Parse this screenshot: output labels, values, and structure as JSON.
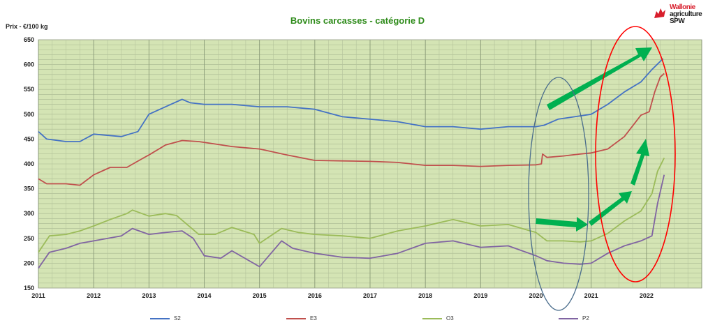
{
  "logo": {
    "line1": "Wallonie",
    "line2": "agriculture",
    "line3": "SPW"
  },
  "chart_data": {
    "type": "line",
    "title": "Bovins carcasses - catégorie D",
    "ylabel": "Prix - €/100 kg",
    "xlabel": "",
    "ylim": [
      150,
      650
    ],
    "xlim": [
      2011,
      2023
    ],
    "x_ticks": [
      "2011",
      "2012",
      "2013",
      "2014",
      "2015",
      "2016",
      "2017",
      "2018",
      "2019",
      "2020",
      "2021",
      "2022"
    ],
    "y_ticks": [
      "150",
      "200",
      "250",
      "300",
      "350",
      "400",
      "450",
      "500",
      "550",
      "600",
      "650"
    ],
    "grid": true,
    "legend_position": "bottom",
    "background": "#d4e4b4",
    "series": [
      {
        "name": "S2",
        "color": "#4472c4",
        "x": [
          2011.0,
          2011.15,
          2011.5,
          2011.75,
          2012.0,
          2012.5,
          2012.8,
          2013.0,
          2013.3,
          2013.6,
          2013.75,
          2014.0,
          2014.5,
          2015.0,
          2015.5,
          2016.0,
          2016.5,
          2017.0,
          2017.5,
          2018.0,
          2018.5,
          2019.0,
          2019.5,
          2020.0,
          2020.15,
          2020.4,
          2020.7,
          2021.0,
          2021.3,
          2021.6,
          2021.9,
          2022.1,
          2022.3
        ],
        "y": [
          465,
          450,
          445,
          445,
          460,
          455,
          465,
          500,
          515,
          530,
          523,
          520,
          520,
          515,
          515,
          510,
          495,
          490,
          485,
          475,
          475,
          470,
          475,
          475,
          478,
          490,
          495,
          500,
          520,
          545,
          565,
          590,
          612
        ]
      },
      {
        "name": "E3",
        "color": "#c0504d",
        "x": [
          2011.0,
          2011.15,
          2011.5,
          2011.75,
          2012.0,
          2012.3,
          2012.6,
          2012.9,
          2013.0,
          2013.3,
          2013.6,
          2013.9,
          2014.2,
          2014.5,
          2015.0,
          2015.5,
          2016.0,
          2016.5,
          2017.0,
          2017.5,
          2018.0,
          2018.5,
          2019.0,
          2019.5,
          2020.0,
          2020.1,
          2020.12,
          2020.2,
          2020.5,
          2020.8,
          2021.0,
          2021.3,
          2021.6,
          2021.9,
          2022.05,
          2022.15,
          2022.25,
          2022.32
        ],
        "y": [
          370,
          360,
          360,
          357,
          378,
          393,
          393,
          412,
          418,
          438,
          447,
          445,
          440,
          435,
          430,
          418,
          407,
          406,
          405,
          403,
          397,
          397,
          395,
          397,
          398,
          400,
          420,
          413,
          416,
          420,
          422,
          430,
          455,
          498,
          505,
          545,
          575,
          582
        ]
      },
      {
        "name": "O3",
        "color": "#9bbb59",
        "x": [
          2011.0,
          2011.2,
          2011.5,
          2011.75,
          2012.0,
          2012.3,
          2012.6,
          2012.7,
          2013.0,
          2013.3,
          2013.5,
          2013.9,
          2014.2,
          2014.5,
          2014.9,
          2015.0,
          2015.4,
          2015.7,
          2016.0,
          2016.5,
          2017.0,
          2017.5,
          2018.0,
          2018.5,
          2019.0,
          2019.5,
          2020.0,
          2020.2,
          2020.5,
          2020.8,
          2021.0,
          2021.3,
          2021.6,
          2021.9,
          2022.1,
          2022.2,
          2022.32
        ],
        "y": [
          222,
          255,
          258,
          265,
          275,
          288,
          300,
          307,
          295,
          300,
          296,
          258,
          258,
          272,
          258,
          240,
          270,
          262,
          258,
          255,
          250,
          265,
          275,
          288,
          275,
          278,
          262,
          245,
          245,
          243,
          245,
          260,
          285,
          305,
          340,
          385,
          412
        ]
      },
      {
        "name": "P2",
        "color": "#8064a2",
        "x": [
          2011.0,
          2011.2,
          2011.5,
          2011.75,
          2012.0,
          2012.5,
          2012.7,
          2013.0,
          2013.3,
          2013.6,
          2013.8,
          2014.0,
          2014.3,
          2014.5,
          2015.0,
          2015.4,
          2015.6,
          2016.0,
          2016.5,
          2017.0,
          2017.5,
          2018.0,
          2018.5,
          2019.0,
          2019.5,
          2020.0,
          2020.2,
          2020.5,
          2020.8,
          2021.0,
          2021.3,
          2021.6,
          2021.9,
          2022.1,
          2022.2,
          2022.32
        ],
        "y": [
          190,
          222,
          230,
          240,
          245,
          255,
          270,
          258,
          262,
          265,
          250,
          215,
          210,
          225,
          193,
          245,
          230,
          220,
          212,
          210,
          220,
          240,
          245,
          232,
          235,
          215,
          205,
          200,
          198,
          200,
          220,
          235,
          245,
          255,
          320,
          378
        ]
      }
    ]
  }
}
